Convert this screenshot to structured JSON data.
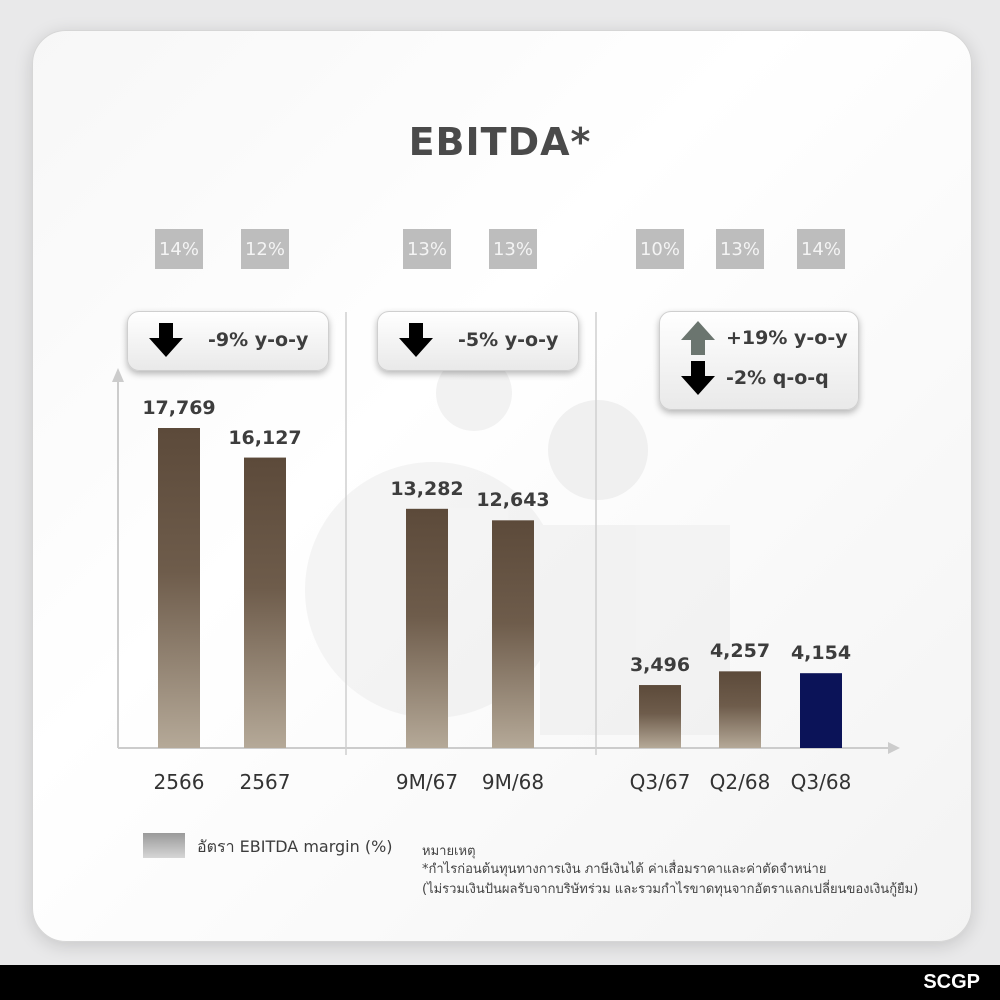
{
  "page": {
    "title": "EBITDA*",
    "brand": "SCGP",
    "legend": "อัตรา EBITDA margin (%)",
    "note_heading": "หมายเหตุ",
    "note_line1": "*กำไรก่อนต้นทุนทางการเงิน ภาษีเงินได้ ค่าเสื่อมราคาและค่าตัดจำหน่าย",
    "note_line2": "(ไม่รวมเงินปันผลรับจากบริษัทร่วม และรวมกำไรขาดทุนจากอัตราแลกเปลี่ยนของเงินกู้ยืม)"
  },
  "callouts": [
    {
      "rows": [
        {
          "icon": "arrow-down-icon",
          "text": "-9% y-o-y"
        }
      ]
    },
    {
      "rows": [
        {
          "icon": "arrow-down-icon",
          "text": "-5% y-o-y"
        }
      ]
    },
    {
      "rows": [
        {
          "icon": "arrow-up-icon",
          "text": "+19% y-o-y"
        },
        {
          "icon": "arrow-down-icon",
          "text": "-2% q-o-q"
        }
      ]
    }
  ],
  "colors": {
    "bar_top": "#5c4a3a",
    "bar_bottom": "#b5a998",
    "highlight_bar": "#0b1358",
    "margin_box": "#bdbdbd"
  },
  "chart_data": {
    "type": "bar",
    "title": "EBITDA*",
    "categories": [
      "2566",
      "2567",
      "9M/67",
      "9M/68",
      "Q3/67",
      "Q2/68",
      "Q3/68"
    ],
    "groups": [
      [
        "2566",
        "2567"
      ],
      [
        "9M/67",
        "9M/68"
      ],
      [
        "Q3/67",
        "Q2/68",
        "Q3/68"
      ]
    ],
    "series": [
      {
        "values": [
          17769,
          16127,
          13282,
          12643,
          3496,
          4257,
          4154
        ],
        "labels": [
          "17,769",
          "16,127",
          "13,282",
          "12,643",
          "3,496",
          "4,257",
          "4,154"
        ]
      },
      {
        "name": "อัตรา EBITDA margin (%)",
        "values": [
          14,
          12,
          13,
          13,
          10,
          13,
          14
        ],
        "labels": [
          "14%",
          "12%",
          "13%",
          "13%",
          "10%",
          "13%",
          "14%"
        ]
      }
    ],
    "highlight": "Q3/68",
    "ylim": [
      0,
      17769
    ],
    "grid": false
  }
}
